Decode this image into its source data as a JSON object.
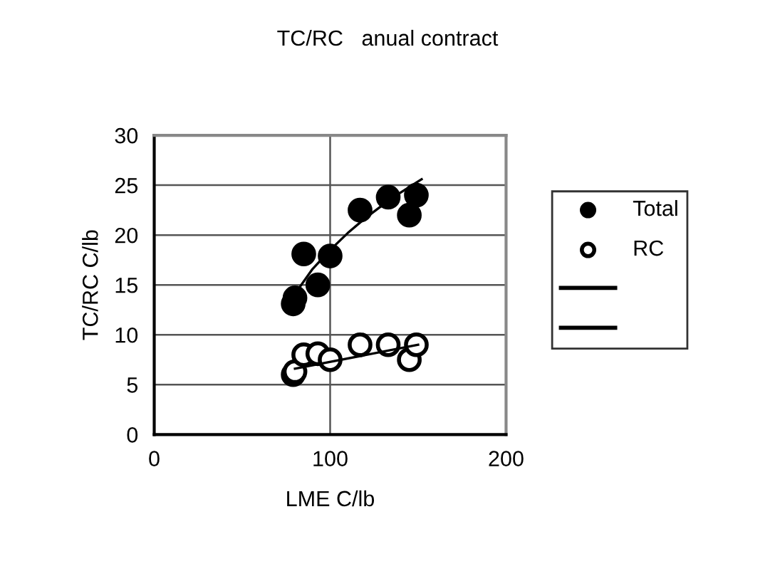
{
  "chart_data": {
    "type": "scatter",
    "title": "TC/RC   anual contract",
    "xlabel": "LME C/lb",
    "ylabel": "TC/RC C/lb",
    "xlim": [
      0,
      200
    ],
    "xticks": [
      0,
      100,
      200
    ],
    "ylim": [
      0,
      30
    ],
    "yticks": [
      0,
      5,
      10,
      15,
      20,
      25,
      30
    ],
    "grid": true,
    "legend": "right",
    "series": [
      {
        "name": "Total",
        "color": "#000000",
        "marker": "circle",
        "x": [
          79,
          80,
          85,
          93,
          100,
          117,
          133,
          145,
          149
        ],
        "values": [
          13.1,
          13.7,
          18.1,
          15,
          17.9,
          22.5,
          23.8,
          22,
          24
        ]
      },
      {
        "name": "RC",
        "color": "#000000",
        "marker": "circle",
        "x": [
          79,
          80,
          85,
          93,
          100,
          117,
          133,
          145,
          149
        ],
        "values": [
          6.0,
          6.3,
          8.0,
          8.1,
          7.5,
          9.0,
          9.0,
          7.5,
          9.0
        ]
      },
      {
        "type": "line",
        "color": "#000000",
        "marker": "none",
        "x": [
          82,
          90,
          100,
          110,
          120,
          135,
          152
        ],
        "values": [
          14.6,
          16.6,
          18.5,
          20.2,
          21.7,
          23.7,
          25.6
        ]
      },
      {
        "type": "line",
        "color": "#000000",
        "marker": "none",
        "x": [
          80,
          150
        ],
        "values": [
          6.6,
          9.0
        ]
      }
    ]
  }
}
